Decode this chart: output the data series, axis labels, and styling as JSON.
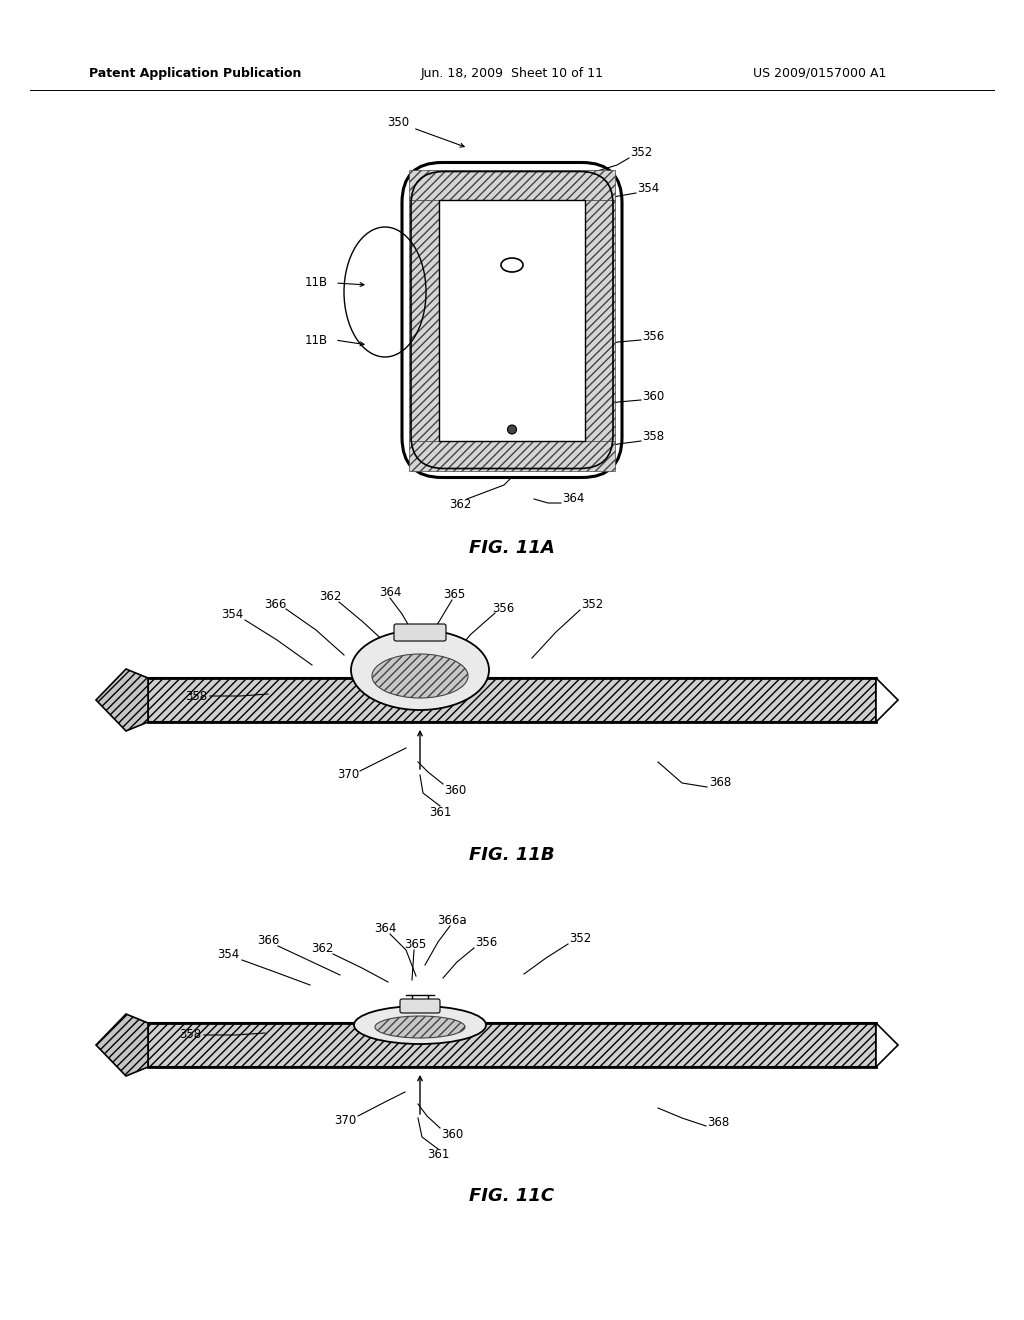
{
  "background_color": "#ffffff",
  "header_left": "Patent Application Publication",
  "header_mid": "Jun. 18, 2009  Sheet 10 of 11",
  "header_right": "US 2009/0157000 A1",
  "line_color": "#000000",
  "text_color": "#000000",
  "fig_captions": [
    "FIG. 11A",
    "FIG. 11B",
    "FIG. 11C"
  ]
}
